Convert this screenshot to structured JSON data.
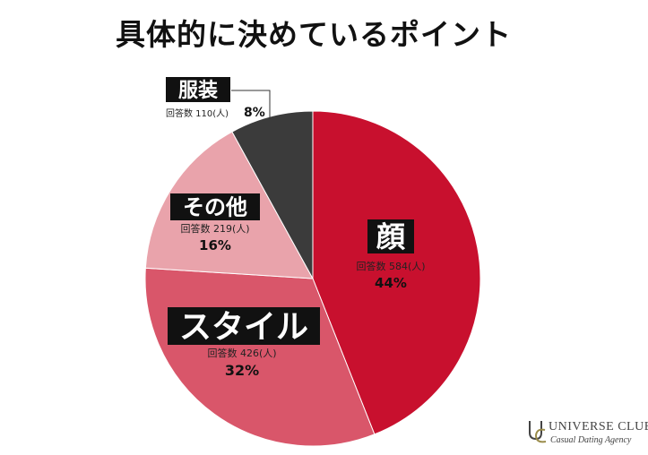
{
  "title": "具体的に決めているポイント",
  "chart_data": {
    "type": "pie",
    "title": "具体的に決めているポイント",
    "count_label": "回答数",
    "count_unit": "(人)",
    "slices": [
      {
        "label": "顔",
        "count": 584,
        "percent": 44,
        "color": "#c8102e"
      },
      {
        "label": "スタイル",
        "count": 426,
        "percent": 32,
        "color": "#d9566a"
      },
      {
        "label": "その他",
        "count": 219,
        "percent": 16,
        "color": "#e9a3ab"
      },
      {
        "label": "服装",
        "count": 110,
        "percent": 8,
        "color": "#3b3b3b"
      }
    ]
  },
  "brand": {
    "name": "UNIVERSE CLUB",
    "tagline": "Casual Dating Agency"
  }
}
